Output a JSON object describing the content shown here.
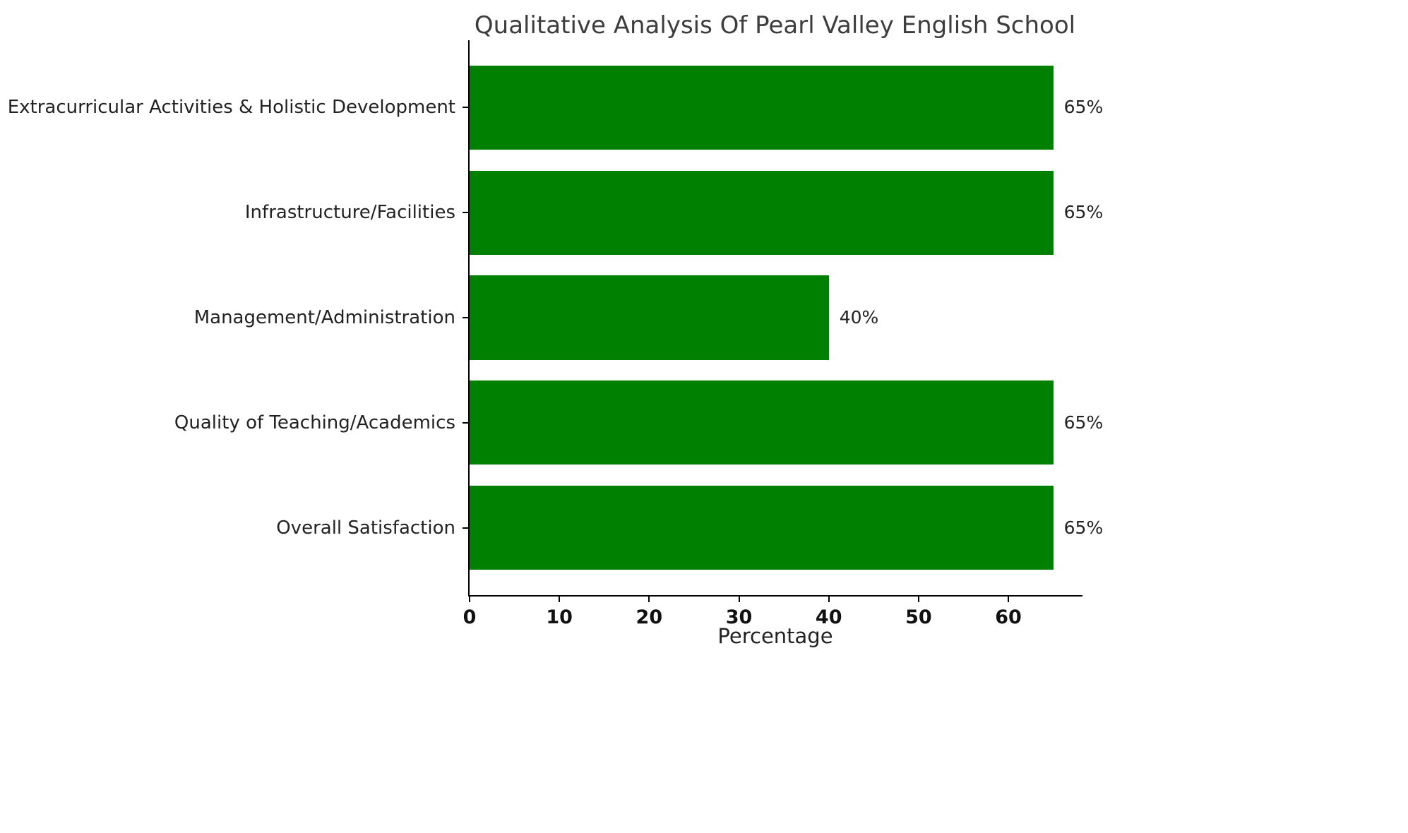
{
  "chart_data": {
    "type": "bar",
    "orientation": "horizontal",
    "title": "Qualitative Analysis Of Pearl Valley English School",
    "xlabel": "Percentage",
    "categories": [
      "Extracurricular Activities & Holistic Development",
      "Infrastructure/Facilities",
      "Management/Administration",
      "Quality of Teaching/Academics",
      "Overall Satisfaction"
    ],
    "values": [
      65,
      65,
      40,
      65,
      65
    ],
    "value_labels": [
      "65%",
      "65%",
      "40%",
      "65%",
      "65%"
    ],
    "xticks": [
      0,
      10,
      20,
      30,
      40,
      50,
      60
    ],
    "xlim": [
      0,
      68.25
    ],
    "bar_color": "#008000",
    "background": "#ffffff",
    "grid": false,
    "legend": null
  }
}
